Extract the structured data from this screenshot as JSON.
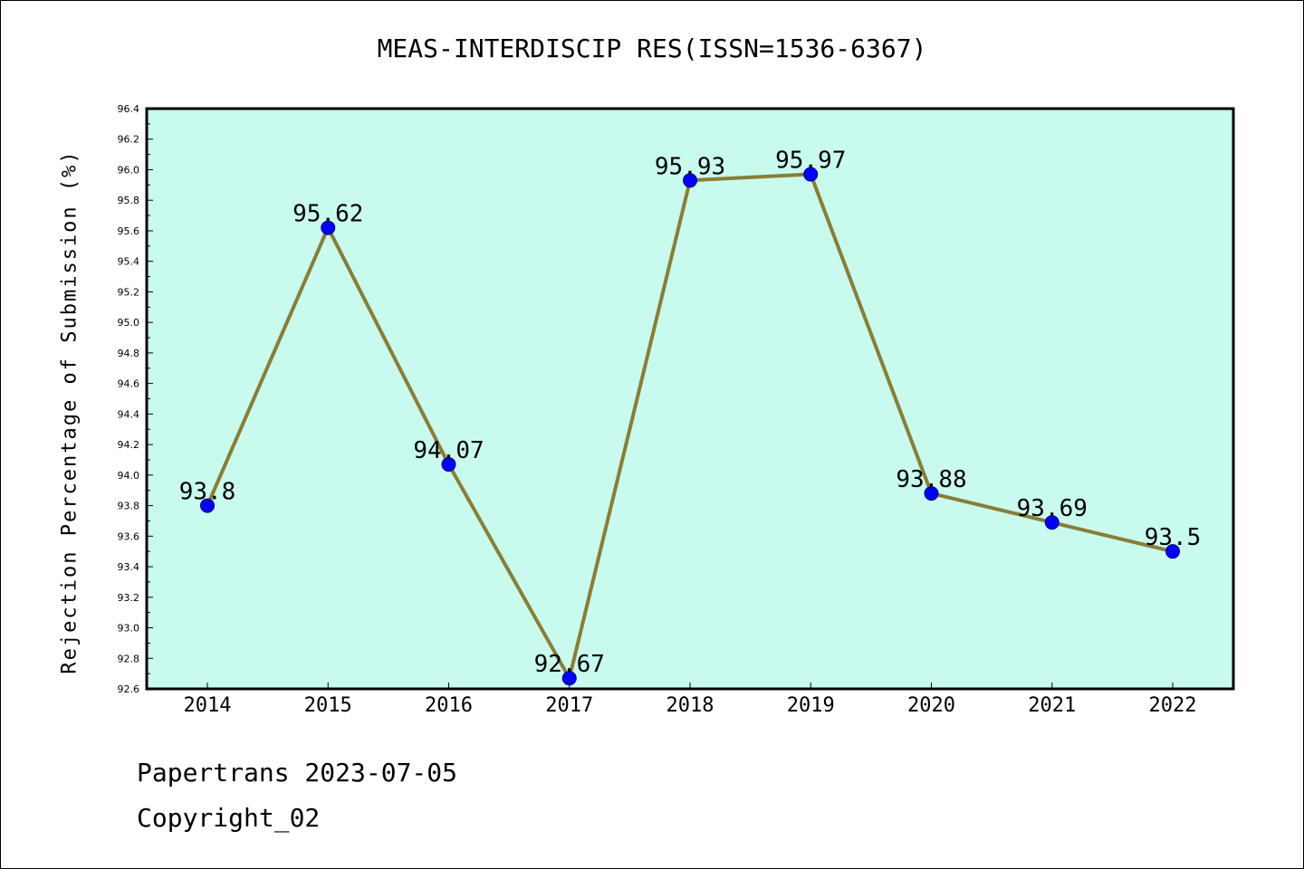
{
  "title": "MEAS-INTERDISCIP RES(ISSN=1536-6367)",
  "footer": {
    "line1": "Papertrans 2023-07-05",
    "line2": "Copyright_02"
  },
  "colors": {
    "plot_background": "#c8fbee",
    "line": "#8b7d35",
    "marker": "#0000ff"
  },
  "chart_data": {
    "type": "line",
    "title": "MEAS-INTERDISCIP RES(ISSN=1536-6367)",
    "xlabel": "",
    "ylabel": "Rejection Percentage of Submission (%)",
    "categories": [
      "2014",
      "2015",
      "2016",
      "2017",
      "2018",
      "2019",
      "2020",
      "2021",
      "2022"
    ],
    "values": [
      93.8,
      95.62,
      94.07,
      92.67,
      95.93,
      95.97,
      93.88,
      93.69,
      93.5
    ],
    "data_labels": [
      "93.8",
      "95.62",
      "94.07",
      "92.67",
      "95.93",
      "95.97",
      "93.88",
      "93.69",
      "93.5"
    ],
    "ylim": [
      92.6,
      96.4
    ],
    "yticks": [
      "92.6",
      "92.8",
      "93.0",
      "93.2",
      "93.4",
      "93.6",
      "93.8",
      "94.0",
      "94.2",
      "94.4",
      "94.6",
      "94.8",
      "95.0",
      "95.2",
      "95.4",
      "95.6",
      "95.8",
      "96.0",
      "96.2",
      "96.4"
    ],
    "grid": false,
    "legend": "none"
  }
}
